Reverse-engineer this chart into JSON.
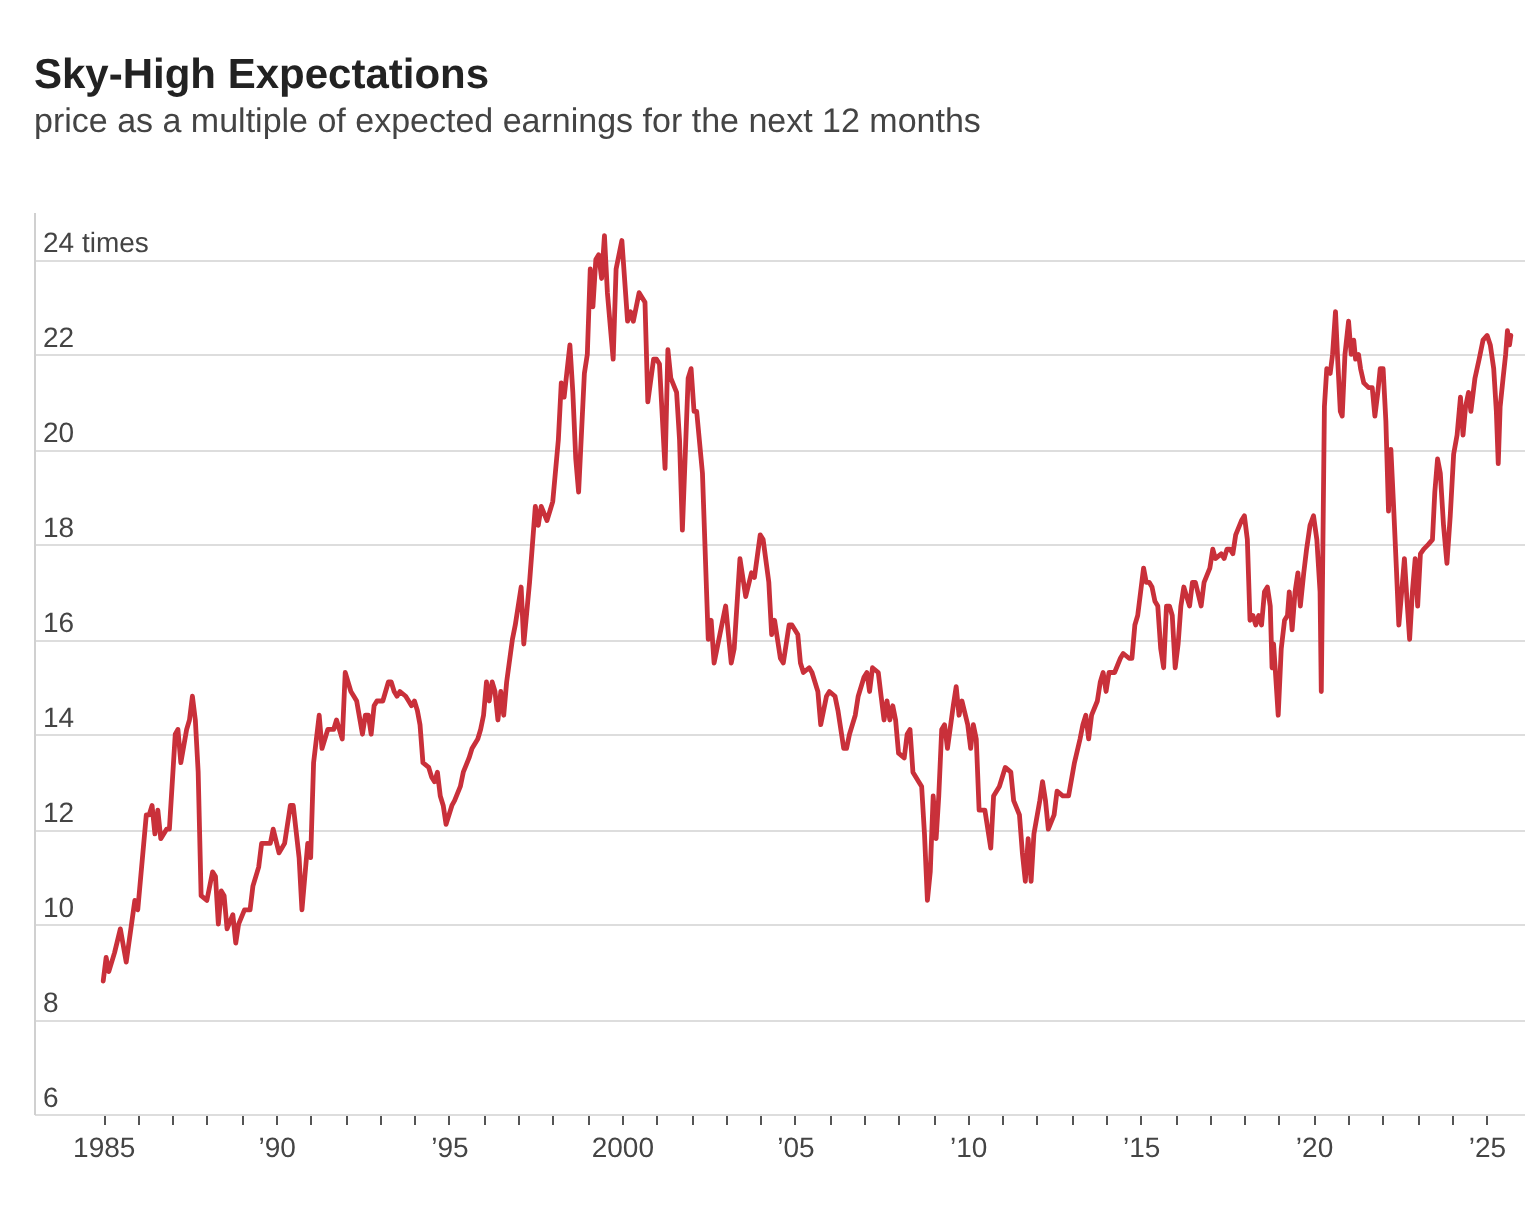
{
  "chart_data": {
    "type": "line",
    "title": "Sky-High Expectations",
    "subtitle": "price as a multiple of expected earnings for the next 12 months",
    "x": [
      "1985-01",
      "1985-02",
      "1985-03",
      "1985-05",
      "1985-07",
      "1985-09",
      "1985-12",
      "1986-01",
      "1986-04",
      "1986-05",
      "1986-06",
      "1986-07",
      "1986-08",
      "1986-09",
      "1986-11",
      "1986-12",
      "1987-02",
      "1987-03",
      "1987-04",
      "1987-06",
      "1987-07",
      "1987-08",
      "1987-09",
      "1987-10",
      "1987-11",
      "1988-01",
      "1988-03",
      "1988-04",
      "1988-05",
      "1988-06",
      "1988-07",
      "1988-08",
      "1988-10",
      "1988-11",
      "1988-12",
      "1989-02",
      "1989-04",
      "1989-05",
      "1989-07",
      "1989-08",
      "1989-10",
      "1989-11",
      "1989-12",
      "1990-02",
      "1990-04",
      "1990-06",
      "1990-07",
      "1990-09",
      "1990-10",
      "1990-12",
      "1991-01",
      "1991-02",
      "1991-04",
      "1991-05",
      "1991-07",
      "1991-09",
      "1991-10",
      "1991-12",
      "1992-01",
      "1992-03",
      "1992-04",
      "1992-05",
      "1992-07",
      "1992-08",
      "1992-09",
      "1992-10",
      "1992-11",
      "1992-12",
      "1993-02",
      "1993-04",
      "1993-05",
      "1993-06",
      "1993-07",
      "1993-08",
      "1993-10",
      "1993-11",
      "1993-12",
      "1994-01",
      "1994-02",
      "1994-03",
      "1994-04",
      "1994-06",
      "1994-07",
      "1994-08",
      "1994-09",
      "1994-10",
      "1994-11",
      "1994-12",
      "1995-02",
      "1995-03",
      "1995-05",
      "1995-06",
      "1995-08",
      "1995-09",
      "1995-11",
      "1995-12",
      "1996-01",
      "1996-02",
      "1996-03",
      "1996-04",
      "1996-05",
      "1996-06",
      "1996-07",
      "1996-08",
      "1996-09",
      "1996-11",
      "1996-12",
      "1997-02",
      "1997-03",
      "1997-05",
      "1997-07",
      "1997-08",
      "1997-09",
      "1997-11",
      "1998-01",
      "1998-03",
      "1998-04",
      "1998-05",
      "1998-07",
      "1998-08",
      "1998-09",
      "1998-10",
      "1998-12",
      "1999-01",
      "1999-02",
      "1999-03",
      "1999-04",
      "1999-05",
      "1999-06",
      "1999-07",
      "1999-08",
      "1999-10",
      "1999-11",
      "2000-01",
      "2000-03",
      "2000-04",
      "2000-05",
      "2000-07",
      "2000-09",
      "2000-10",
      "2000-12",
      "2001-01",
      "2001-02",
      "2001-04",
      "2001-05",
      "2001-06",
      "2001-08",
      "2001-09",
      "2001-10",
      "2001-12",
      "2002-01",
      "2002-02",
      "2002-03",
      "2002-05",
      "2002-07",
      "2002-08",
      "2002-09",
      "2002-11",
      "2003-01",
      "2003-03",
      "2003-04",
      "2003-06",
      "2003-08",
      "2003-10",
      "2003-11",
      "2004-01",
      "2004-02",
      "2004-04",
      "2004-05",
      "2004-06",
      "2004-08",
      "2004-09",
      "2004-11",
      "2004-12",
      "2005-02",
      "2005-03",
      "2005-04",
      "2005-06",
      "2005-07",
      "2005-09",
      "2005-10",
      "2005-12",
      "2006-01",
      "2006-03",
      "2006-04",
      "2006-06",
      "2006-07",
      "2006-08",
      "2006-10",
      "2006-11",
      "2007-01",
      "2007-02",
      "2007-03",
      "2007-04",
      "2007-06",
      "2007-07",
      "2007-08",
      "2007-09",
      "2007-10",
      "2007-11",
      "2007-12",
      "2008-01",
      "2008-03",
      "2008-04",
      "2008-05",
      "2008-06",
      "2008-08",
      "2008-09",
      "2008-10",
      "2008-11",
      "2008-12",
      "2009-01",
      "2009-02",
      "2009-03",
      "2009-04",
      "2009-05",
      "2009-06",
      "2009-08",
      "2009-09",
      "2009-10",
      "2009-11",
      "2010-01",
      "2010-02",
      "2010-03",
      "2010-04",
      "2010-05",
      "2010-07",
      "2010-09",
      "2010-10",
      "2010-12",
      "2011-02",
      "2011-04",
      "2011-05",
      "2011-07",
      "2011-08",
      "2011-09",
      "2011-10",
      "2011-11",
      "2011-12",
      "2012-02",
      "2012-03",
      "2012-04",
      "2012-05",
      "2012-07",
      "2012-08",
      "2012-10",
      "2012-12",
      "2013-02",
      "2013-04",
      "2013-05",
      "2013-06",
      "2013-07",
      "2013-08",
      "2013-10",
      "2013-11",
      "2013-12",
      "2014-01",
      "2014-02",
      "2014-04",
      "2014-06",
      "2014-07",
      "2014-09",
      "2014-10",
      "2014-11",
      "2014-12",
      "2015-01",
      "2015-02",
      "2015-03",
      "2015-04",
      "2015-05",
      "2015-06",
      "2015-07",
      "2015-08",
      "2015-09",
      "2015-10",
      "2015-11",
      "2015-12",
      "2016-01",
      "2016-02",
      "2016-03",
      "2016-04",
      "2016-05",
      "2016-06",
      "2016-07",
      "2016-08",
      "2016-10",
      "2016-11",
      "2017-01",
      "2017-02",
      "2017-03",
      "2017-05",
      "2017-06",
      "2017-07",
      "2017-08",
      "2017-09",
      "2017-10",
      "2017-12",
      "2018-01",
      "2018-02",
      "2018-03",
      "2018-04",
      "2018-05",
      "2018-06",
      "2018-07",
      "2018-08",
      "2018-09",
      "2018-10",
      "2018-10-20",
      "2018-11-05",
      "2018-11-25",
      "2018-12-24",
      "2019-01-25",
      "2019-03",
      "2019-04",
      "2019-04-20",
      "2019-05-20",
      "2019-06-20",
      "2019-07-20",
      "2019-08-15",
      "2019-09-20",
      "2019-10-20",
      "2019-11-25",
      "2020-01",
      "2020-02-05",
      "2020-03-10",
      "2020-03-23",
      "2020-04-25",
      "2020-05-20",
      "2020-06-25",
      "2020-07-20",
      "2020-08-20",
      "2020-09-12",
      "2020-10-10",
      "2020-10-30",
      "2020-11-28",
      "2021-01-05",
      "2021-02-02",
      "2021-03-01",
      "2021-03-20",
      "2021-04-20",
      "2021-05-12",
      "2021-06-15",
      "2021-08-05",
      "2021-09-12",
      "2021-10-10",
      "2021-11-10",
      "2021-12-05",
      "2022-01-05",
      "2022-02-03",
      "2022-03-03",
      "2022-03-28",
      "2022-04-28",
      "2022-05-25",
      "2022-06-20",
      "2022-07-20",
      "2022-08-18",
      "2022-09-15",
      "2022-10-12",
      "2022-11-10",
      "2022-12-10",
      "2023-01-05",
      "2023-02-03",
      "2023-03-10",
      "2023-04-28",
      "2023-06-10",
      "2023-07-05",
      "2023-08-03",
      "2023-09-01",
      "2023-10-05",
      "2023-11-10",
      "2023-12-15",
      "2024-01-20",
      "2024-02-25",
      "2024-04-01",
      "2024-04-28",
      "2024-05-25",
      "2024-06-25",
      "2024-07-20",
      "2024-09-01",
      "2024-10-15",
      "2024-11-25",
      "2025-01-08",
      "2025-02-10",
      "2025-03-18",
      "2025-04-15",
      "2025-05-05",
      "2025-05-25",
      "2025-06-25",
      "2025-07-22",
      "2025-08-10",
      "2025-09-01",
      "2025-09-15"
    ],
    "series": [
      {
        "color": "#c9303a",
        "values": [
          8.8,
          9.3,
          9.0,
          9.4,
          9.9,
          9.2,
          10.5,
          10.3,
          12.3,
          12.3,
          12.5,
          11.9,
          12.4,
          11.8,
          12.0,
          12.0,
          14.0,
          14.1,
          13.4,
          14.1,
          14.3,
          14.8,
          14.3,
          13.2,
          10.6,
          10.5,
          11.1,
          11.0,
          10.0,
          10.7,
          10.6,
          9.9,
          10.2,
          9.6,
          10.0,
          10.3,
          10.3,
          10.8,
          11.2,
          11.7,
          11.7,
          11.7,
          12.0,
          11.5,
          11.7,
          12.5,
          12.5,
          11.4,
          10.3,
          11.7,
          11.4,
          13.4,
          14.4,
          13.7,
          14.1,
          14.1,
          14.3,
          13.9,
          15.3,
          14.9,
          14.8,
          14.7,
          14.0,
          14.4,
          14.4,
          14.0,
          14.6,
          14.7,
          14.7,
          15.1,
          15.1,
          14.9,
          14.8,
          14.9,
          14.8,
          14.7,
          14.6,
          14.7,
          14.5,
          14.2,
          13.4,
          13.3,
          13.1,
          13.0,
          13.2,
          12.7,
          12.5,
          12.1,
          12.5,
          12.6,
          12.9,
          13.2,
          13.5,
          13.7,
          13.9,
          14.1,
          14.4,
          15.1,
          14.7,
          15.1,
          14.9,
          14.3,
          14.9,
          14.4,
          15.1,
          16.0,
          16.3,
          17.1,
          15.9,
          17.2,
          18.8,
          18.4,
          18.8,
          18.5,
          18.9,
          20.2,
          21.4,
          21.1,
          22.2,
          21.2,
          19.8,
          19.1,
          21.6,
          22.0,
          23.8,
          23.0,
          24.0,
          24.1,
          23.6,
          24.5,
          23.3,
          21.9,
          23.8,
          24.4,
          22.7,
          22.9,
          22.7,
          23.3,
          23.1,
          21.0,
          21.9,
          21.9,
          21.8,
          19.6,
          22.1,
          21.5,
          21.2,
          20.2,
          18.3,
          21.5,
          21.7,
          20.8,
          20.8,
          19.5,
          16.0,
          16.4,
          15.5,
          16.1,
          16.7,
          15.5,
          15.8,
          17.7,
          16.9,
          17.4,
          17.3,
          18.2,
          18.1,
          17.2,
          16.1,
          16.4,
          15.6,
          15.5,
          16.3,
          16.3,
          16.1,
          15.5,
          15.3,
          15.4,
          15.3,
          14.9,
          14.2,
          14.8,
          14.9,
          14.8,
          14.5,
          13.7,
          13.7,
          14.0,
          14.4,
          14.8,
          15.2,
          15.3,
          14.9,
          15.4,
          15.3,
          14.8,
          14.3,
          14.7,
          14.3,
          14.6,
          14.3,
          13.6,
          13.5,
          14.0,
          14.1,
          13.2,
          13.0,
          12.9,
          11.9,
          10.5,
          11.1,
          12.7,
          11.8,
          12.7,
          14.1,
          14.2,
          13.7,
          14.6,
          15.0,
          14.4,
          14.7,
          14.2,
          13.7,
          14.2,
          13.9,
          12.4,
          12.4,
          11.6,
          12.7,
          12.9,
          13.3,
          13.2,
          12.6,
          12.3,
          11.5,
          10.9,
          11.8,
          10.9,
          11.9,
          12.6,
          13.0,
          12.6,
          12.0,
          12.3,
          12.8,
          12.7,
          12.7,
          13.4,
          13.9,
          14.2,
          14.4,
          13.9,
          14.4,
          14.7,
          15.1,
          15.3,
          14.9,
          15.3,
          15.3,
          15.6,
          15.7,
          15.6,
          15.6,
          16.3,
          16.5,
          17.0,
          17.5,
          17.2,
          17.2,
          17.1,
          16.8,
          16.7,
          15.8,
          15.4,
          16.7,
          16.7,
          16.5,
          15.4,
          15.9,
          16.7,
          17.1,
          16.9,
          16.7,
          17.2,
          17.2,
          16.7,
          17.2,
          17.5,
          17.9,
          17.7,
          17.8,
          17.7,
          17.9,
          17.9,
          17.8,
          18.2,
          18.5,
          18.6,
          18.1,
          16.4,
          16.5,
          16.3,
          16.5,
          16.3,
          17.0,
          17.1,
          16.7,
          15.4,
          15.9,
          15.3,
          14.4,
          15.8,
          16.4,
          16.5,
          17.0,
          16.2,
          17.0,
          17.4,
          16.7,
          17.4,
          17.9,
          18.4,
          18.6,
          18.1,
          17.0,
          14.9,
          20.9,
          21.7,
          21.6,
          22.0,
          22.9,
          21.9,
          20.8,
          20.7,
          22.0,
          22.7,
          22.0,
          22.3,
          21.9,
          22.0,
          21.7,
          21.4,
          21.3,
          21.3,
          20.7,
          21.2,
          21.7,
          21.7,
          20.6,
          18.7,
          20.0,
          18.7,
          17.5,
          16.3,
          17.0,
          17.7,
          16.8,
          16.0,
          17.0,
          17.7,
          16.7,
          17.8,
          17.9,
          18.0,
          18.1,
          19.1,
          19.8,
          19.5,
          18.4,
          17.6,
          18.6,
          19.9,
          20.3,
          21.1,
          20.3,
          20.9,
          21.2,
          20.8,
          21.5,
          21.9,
          22.3,
          22.4,
          22.2,
          21.7,
          20.8,
          19.7,
          20.9,
          21.5,
          22.0,
          22.5,
          22.2,
          22.4
        ]
      }
    ],
    "xlim": [
      "1983-01",
      "2026-02"
    ],
    "xticks": [
      {
        "value": "1985",
        "label": "1985"
      },
      {
        "value": "1986",
        "label": null
      },
      {
        "value": "1987",
        "label": null
      },
      {
        "value": "1988",
        "label": null
      },
      {
        "value": "1989",
        "label": null
      },
      {
        "value": "1990",
        "label": "’90"
      },
      {
        "value": "1991",
        "label": null
      },
      {
        "value": "1992",
        "label": null
      },
      {
        "value": "1993",
        "label": null
      },
      {
        "value": "1994",
        "label": null
      },
      {
        "value": "1995",
        "label": "’95"
      },
      {
        "value": "1996",
        "label": null
      },
      {
        "value": "1997",
        "label": null
      },
      {
        "value": "1998",
        "label": null
      },
      {
        "value": "1999",
        "label": null
      },
      {
        "value": "2000",
        "label": "2000"
      },
      {
        "value": "2001",
        "label": null
      },
      {
        "value": "2002",
        "label": null
      },
      {
        "value": "2003",
        "label": null
      },
      {
        "value": "2004",
        "label": null
      },
      {
        "value": "2005",
        "label": "’05"
      },
      {
        "value": "2006",
        "label": null
      },
      {
        "value": "2007",
        "label": null
      },
      {
        "value": "2008",
        "label": null
      },
      {
        "value": "2009",
        "label": null
      },
      {
        "value": "2010",
        "label": "’10"
      },
      {
        "value": "2011",
        "label": null
      },
      {
        "value": "2012",
        "label": null
      },
      {
        "value": "2013",
        "label": null
      },
      {
        "value": "2014",
        "label": null
      },
      {
        "value": "2015",
        "label": "’15"
      },
      {
        "value": "2016",
        "label": null
      },
      {
        "value": "2017",
        "label": null
      },
      {
        "value": "2018",
        "label": null
      },
      {
        "value": "2019",
        "label": null
      },
      {
        "value": "2020",
        "label": "’20"
      },
      {
        "value": "2021",
        "label": null
      },
      {
        "value": "2022",
        "label": null
      },
      {
        "value": "2023",
        "label": null
      },
      {
        "value": "2024",
        "label": null
      },
      {
        "value": "2025",
        "label": "’25"
      }
    ],
    "ylim": [
      6,
      25
    ],
    "yticks": [
      6,
      8,
      10,
      12,
      14,
      16,
      18,
      20,
      22,
      {
        "value": 24,
        "label": "24 times"
      }
    ],
    "grid": "y"
  }
}
